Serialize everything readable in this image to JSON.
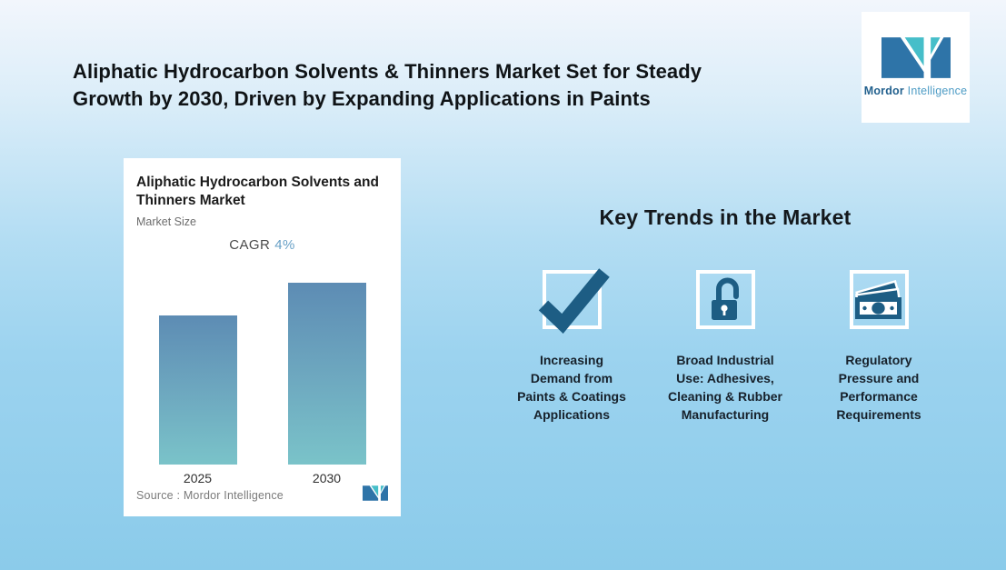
{
  "title": "Aliphatic Hydrocarbon Solvents & Thinners Market Set for Steady\nGrowth by 2030, Driven by Expanding Applications in Paints",
  "brand": {
    "name_bold": "Mordor",
    "name_light": "Intelligence"
  },
  "chart_card": {
    "title": "Aliphatic Hydrocarbon Solvents and Thinners Market",
    "subtitle": "Market Size",
    "cagr_label": "CAGR",
    "cagr_value": "4%",
    "source": "Source :  Mordor Intelligence"
  },
  "chart_data": {
    "type": "bar",
    "title": "Aliphatic Hydrocarbon Solvents and Thinners Market",
    "subtitle": "Market Size",
    "annotation": "CAGR 4%",
    "cagr_percent": 4,
    "categories": [
      "2025",
      "2030"
    ],
    "series": [
      {
        "name": "Market Size (indexed, 2025 = 100; no numeric axis shown)",
        "values": [
          100,
          122
        ]
      }
    ],
    "value_labels_shown": false,
    "gridlines": false,
    "legend": "none",
    "bar_gradient": [
      "#5d8cb4",
      "#7ac3c9"
    ]
  },
  "key_trends": {
    "heading": "Key Trends in the Market",
    "items": [
      {
        "icon": "check-icon",
        "label": "Increasing\nDemand from\nPaints & Coatings\nApplications"
      },
      {
        "icon": "open-lock-icon",
        "label": "Broad Industrial\nUse: Adhesives,\nCleaning & Rubber\nManufacturing"
      },
      {
        "icon": "banknotes-icon",
        "label": "Regulatory\nPressure and\nPerformance\nRequirements"
      }
    ]
  },
  "colors": {
    "background_top": "#f2f6fc",
    "background_bottom": "#8bcbea",
    "icon_blue": "#1d5d84",
    "bar_top": "#5d8cb4",
    "bar_bottom": "#7ac3c9",
    "cagr_accent": "#68a0c6",
    "logo_blue": "#2e74a8",
    "logo_teal": "#46bec9"
  }
}
